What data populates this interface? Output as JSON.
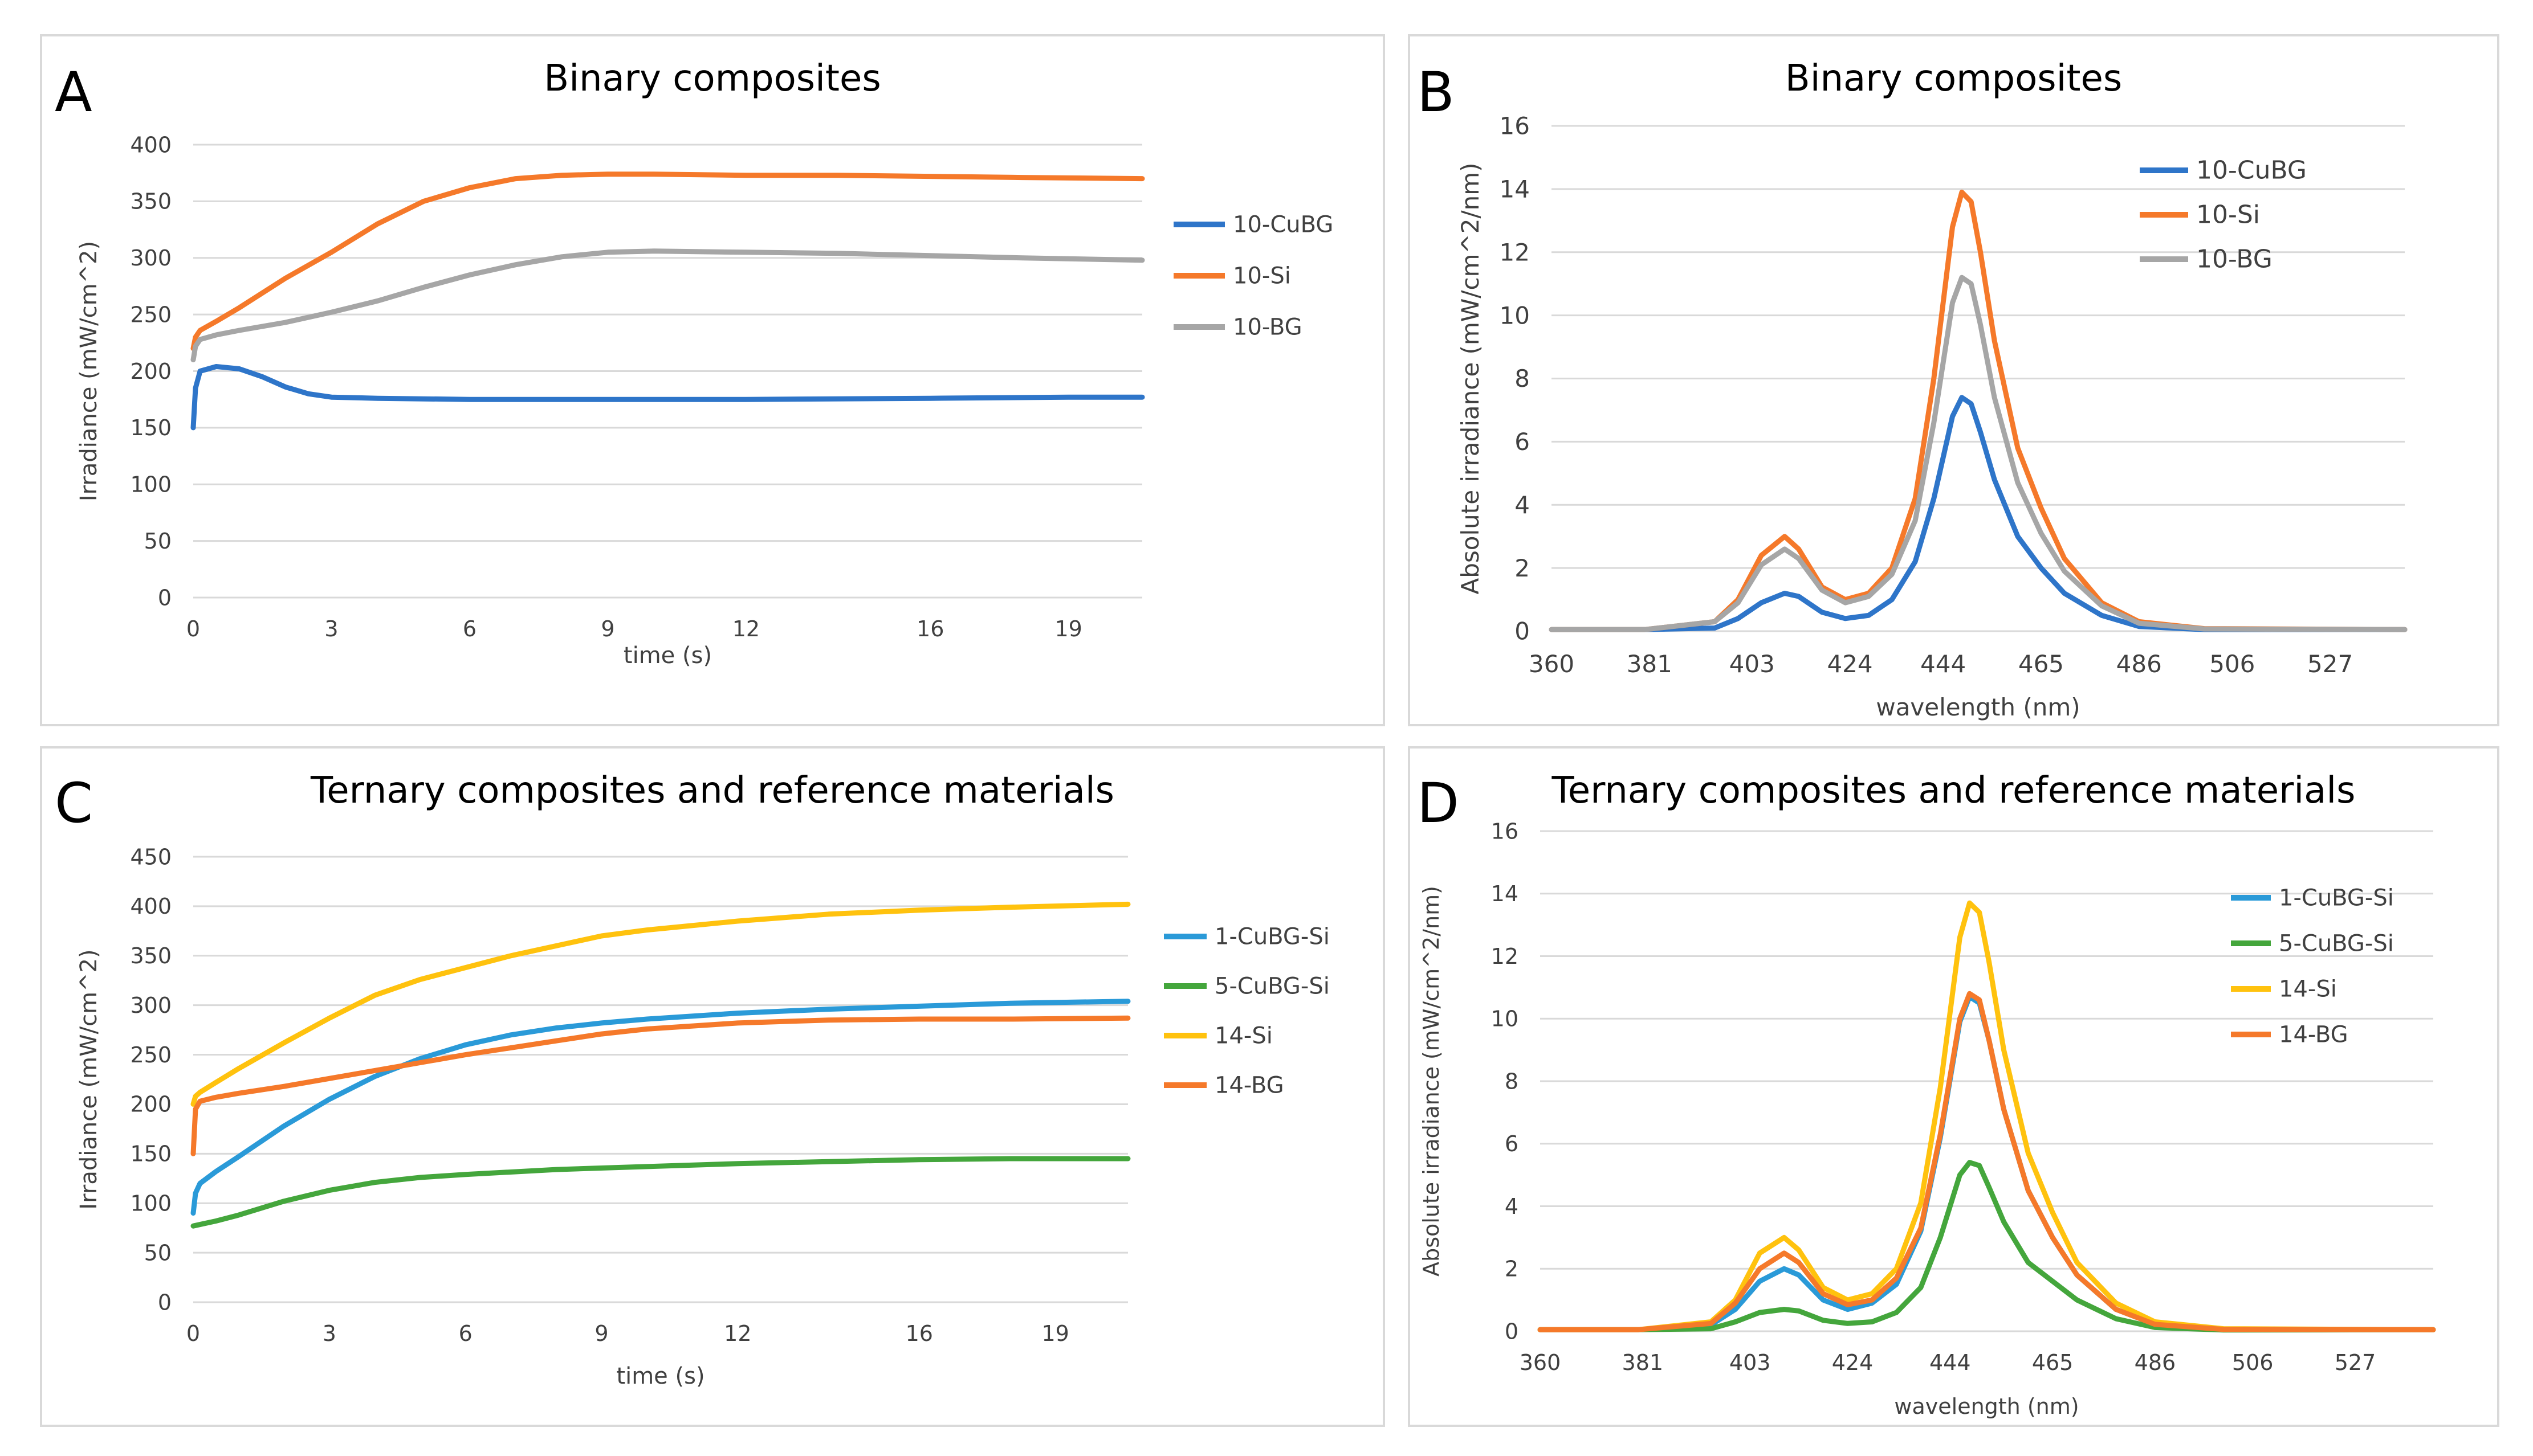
{
  "panels": [
    {
      "letter": "A",
      "title": "Binary composites"
    },
    {
      "letter": "B",
      "title": "Binary composites"
    },
    {
      "letter": "C",
      "title": "Ternary composites and reference materials"
    },
    {
      "letter": "D",
      "title": "Ternary composites and reference materials"
    }
  ],
  "chart_data": [
    {
      "panel": "A",
      "type": "line",
      "title": "Binary composites",
      "xlabel": "time (s)",
      "ylabel": "Irradiance (mW/cm^2)",
      "xlim": [
        0,
        20.6
      ],
      "ylim": [
        0,
        400
      ],
      "xticks": [
        0,
        3,
        6,
        9,
        12,
        16,
        19
      ],
      "yticks": [
        0,
        50,
        100,
        150,
        200,
        250,
        300,
        350,
        400
      ],
      "grid": true,
      "legend": "right",
      "series": [
        {
          "name": "10-CuBG",
          "color": "#2e75c9",
          "x": [
            0,
            0.05,
            0.15,
            0.5,
            1,
            1.5,
            2,
            2.5,
            3,
            4,
            6,
            9,
            12,
            16,
            19,
            20.6
          ],
          "y": [
            150,
            185,
            200,
            204,
            202,
            195,
            186,
            180,
            177,
            176,
            175,
            175,
            175,
            176,
            177,
            177
          ]
        },
        {
          "name": "10-Si",
          "color": "#f5792a",
          "x": [
            0,
            0.05,
            0.15,
            0.5,
            1,
            2,
            3,
            4,
            5,
            6,
            7,
            8,
            9,
            10,
            12,
            14,
            16,
            18,
            20.6
          ],
          "y": [
            220,
            230,
            236,
            244,
            256,
            282,
            305,
            330,
            350,
            362,
            370,
            373,
            374,
            374,
            373,
            373,
            372,
            371,
            370
          ]
        },
        {
          "name": "10-BG",
          "color": "#a6a6a6",
          "x": [
            0,
            0.05,
            0.15,
            0.5,
            1,
            2,
            3,
            4,
            5,
            6,
            7,
            8,
            9,
            10,
            12,
            14,
            16,
            18,
            20.6
          ],
          "y": [
            210,
            222,
            228,
            232,
            236,
            243,
            252,
            262,
            274,
            285,
            294,
            301,
            305,
            306,
            305,
            304,
            302,
            300,
            298
          ]
        }
      ]
    },
    {
      "panel": "B",
      "type": "line",
      "title": "Binary composites",
      "xlabel": "wavelength (nm)",
      "ylabel": "Absolute irradiance (mW/cm^2/nm)",
      "xlim": [
        360,
        543
      ],
      "ylim": [
        0,
        16
      ],
      "xticks": [
        360,
        381,
        403,
        424,
        444,
        465,
        486,
        506,
        527
      ],
      "yticks": [
        0,
        2,
        4,
        6,
        8,
        10,
        12,
        14,
        16
      ],
      "grid": true,
      "legend": "top-right",
      "series": [
        {
          "name": "10-CuBG",
          "color": "#2e75c9",
          "x": [
            360,
            380,
            395,
            400,
            405,
            410,
            413,
            418,
            423,
            428,
            433,
            438,
            442,
            446,
            448,
            450,
            452,
            455,
            460,
            465,
            470,
            478,
            486,
            500,
            543
          ],
          "y": [
            0.05,
            0.05,
            0.1,
            0.4,
            0.9,
            1.2,
            1.1,
            0.6,
            0.4,
            0.5,
            1.0,
            2.2,
            4.2,
            6.8,
            7.4,
            7.2,
            6.3,
            4.8,
            3.0,
            2.0,
            1.2,
            0.5,
            0.15,
            0.05,
            0.05
          ]
        },
        {
          "name": "10-Si",
          "color": "#f5792a",
          "x": [
            360,
            380,
            395,
            400,
            405,
            410,
            413,
            418,
            423,
            428,
            433,
            438,
            442,
            446,
            448,
            450,
            452,
            455,
            460,
            465,
            470,
            478,
            486,
            500,
            543
          ],
          "y": [
            0.05,
            0.05,
            0.3,
            1.0,
            2.4,
            3.0,
            2.6,
            1.4,
            1.0,
            1.2,
            2.0,
            4.2,
            8.0,
            12.8,
            13.9,
            13.6,
            12.0,
            9.2,
            5.8,
            3.9,
            2.3,
            0.9,
            0.3,
            0.08,
            0.05
          ]
        },
        {
          "name": "10-BG",
          "color": "#a6a6a6",
          "x": [
            360,
            380,
            395,
            400,
            405,
            410,
            413,
            418,
            423,
            428,
            433,
            438,
            442,
            446,
            448,
            450,
            452,
            455,
            460,
            465,
            470,
            478,
            486,
            500,
            543
          ],
          "y": [
            0.05,
            0.05,
            0.3,
            0.9,
            2.1,
            2.6,
            2.3,
            1.3,
            0.9,
            1.1,
            1.8,
            3.5,
            6.6,
            10.4,
            11.2,
            11.0,
            9.7,
            7.4,
            4.7,
            3.1,
            1.9,
            0.8,
            0.25,
            0.07,
            0.05
          ]
        }
      ]
    },
    {
      "panel": "C",
      "type": "line",
      "title": "Ternary composites and reference materials",
      "xlabel": "time (s)",
      "ylabel": "Irradiance (mW/cm^2)",
      "xlim": [
        0,
        20.6
      ],
      "ylim": [
        0,
        450
      ],
      "xticks": [
        0,
        3,
        6,
        9,
        12,
        16,
        19
      ],
      "yticks": [
        0,
        50,
        100,
        150,
        200,
        250,
        300,
        350,
        400,
        450
      ],
      "grid": true,
      "legend": "right",
      "series": [
        {
          "name": "1-CuBG-Si",
          "color": "#2a9ad8",
          "x": [
            0,
            0.05,
            0.15,
            0.5,
            1,
            2,
            3,
            4,
            5,
            6,
            7,
            8,
            9,
            10,
            12,
            14,
            16,
            18,
            20.6
          ],
          "y": [
            90,
            110,
            120,
            132,
            147,
            178,
            205,
            228,
            246,
            260,
            270,
            277,
            282,
            286,
            292,
            296,
            299,
            302,
            304
          ]
        },
        {
          "name": "5-CuBG-Si",
          "color": "#44a63c",
          "x": [
            0,
            0.2,
            0.5,
            1,
            2,
            3,
            4,
            5,
            6,
            8,
            10,
            12,
            14,
            16,
            18,
            20.6
          ],
          "y": [
            77,
            79,
            82,
            88,
            102,
            113,
            121,
            126,
            129,
            134,
            137,
            140,
            142,
            144,
            145,
            145
          ]
        },
        {
          "name": "14-Si",
          "color": "#ffc20e",
          "x": [
            0,
            0.05,
            0.15,
            0.5,
            1,
            2,
            3,
            4,
            5,
            6,
            7,
            8,
            9,
            10,
            12,
            14,
            16,
            18,
            20.6
          ],
          "y": [
            200,
            208,
            212,
            222,
            236,
            262,
            287,
            310,
            326,
            338,
            350,
            360,
            370,
            376,
            385,
            392,
            396,
            399,
            402
          ]
        },
        {
          "name": "14-BG",
          "color": "#f5792a",
          "x": [
            0,
            0.05,
            0.15,
            0.5,
            1,
            2,
            3,
            4,
            5,
            6,
            7,
            8,
            9,
            10,
            12,
            14,
            16,
            18,
            20.6
          ],
          "y": [
            150,
            195,
            203,
            207,
            211,
            218,
            226,
            234,
            242,
            250,
            257,
            264,
            271,
            276,
            282,
            285,
            286,
            286,
            287
          ]
        }
      ]
    },
    {
      "panel": "D",
      "type": "line",
      "title": "Ternary composites and reference materials",
      "xlabel": "wavelength (nm)",
      "ylabel": "Absolute irradiance (mW/cm^2/nm)",
      "xlim": [
        360,
        543
      ],
      "ylim": [
        0,
        16
      ],
      "xticks": [
        360,
        381,
        403,
        424,
        444,
        465,
        486,
        506,
        527
      ],
      "yticks": [
        0,
        2,
        4,
        6,
        8,
        10,
        12,
        14,
        16
      ],
      "grid": true,
      "legend": "top-right",
      "series": [
        {
          "name": "1-CuBG-Si",
          "color": "#2a9ad8",
          "x": [
            360,
            380,
            395,
            400,
            405,
            410,
            413,
            418,
            423,
            428,
            433,
            438,
            442,
            446,
            448,
            450,
            452,
            455,
            460,
            465,
            470,
            478,
            486,
            500,
            543
          ],
          "y": [
            0.05,
            0.05,
            0.2,
            0.7,
            1.6,
            2.0,
            1.8,
            1.0,
            0.7,
            0.9,
            1.5,
            3.2,
            6.2,
            9.9,
            10.7,
            10.5,
            9.3,
            7.1,
            4.5,
            3.0,
            1.8,
            0.7,
            0.22,
            0.06,
            0.05
          ]
        },
        {
          "name": "5-CuBG-Si",
          "color": "#44a63c",
          "x": [
            360,
            380,
            395,
            400,
            405,
            410,
            413,
            418,
            423,
            428,
            433,
            438,
            442,
            446,
            448,
            450,
            452,
            455,
            460,
            465,
            470,
            478,
            486,
            500,
            543
          ],
          "y": [
            0.05,
            0.05,
            0.08,
            0.3,
            0.6,
            0.7,
            0.65,
            0.35,
            0.25,
            0.3,
            0.6,
            1.4,
            3.0,
            5.0,
            5.4,
            5.3,
            4.6,
            3.5,
            2.2,
            1.6,
            1.0,
            0.4,
            0.12,
            0.04,
            0.05
          ]
        },
        {
          "name": "14-Si",
          "color": "#ffc20e",
          "x": [
            360,
            380,
            395,
            400,
            405,
            410,
            413,
            418,
            423,
            428,
            433,
            438,
            442,
            446,
            448,
            450,
            452,
            455,
            460,
            465,
            470,
            478,
            486,
            500,
            543
          ],
          "y": [
            0.05,
            0.05,
            0.3,
            1.0,
            2.5,
            3.0,
            2.6,
            1.4,
            1.0,
            1.2,
            2.0,
            4.1,
            7.8,
            12.6,
            13.7,
            13.4,
            11.8,
            9.0,
            5.7,
            3.8,
            2.2,
            0.9,
            0.3,
            0.08,
            0.05
          ]
        },
        {
          "name": "14-BG",
          "color": "#f5792a",
          "x": [
            360,
            380,
            395,
            400,
            405,
            410,
            413,
            418,
            423,
            428,
            433,
            438,
            442,
            446,
            448,
            450,
            452,
            455,
            460,
            465,
            470,
            478,
            486,
            500,
            543
          ],
          "y": [
            0.05,
            0.05,
            0.25,
            0.9,
            2.0,
            2.5,
            2.2,
            1.2,
            0.85,
            1.0,
            1.7,
            3.3,
            6.3,
            10.0,
            10.8,
            10.6,
            9.3,
            7.1,
            4.5,
            3.0,
            1.8,
            0.7,
            0.22,
            0.06,
            0.05
          ]
        }
      ]
    }
  ]
}
